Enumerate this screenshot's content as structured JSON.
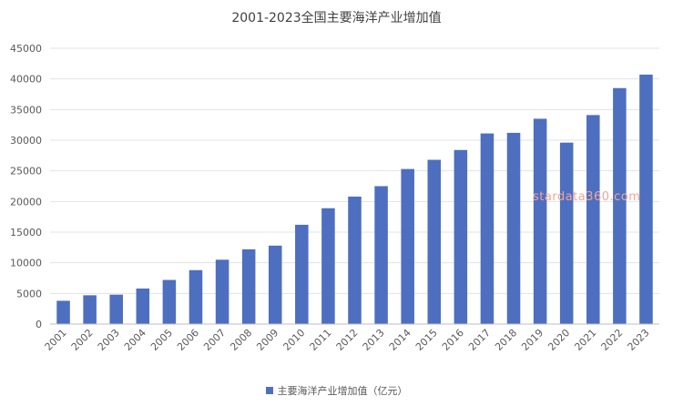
{
  "chart_data": {
    "type": "bar",
    "title": "2001-2023全国主要海洋产业增加值",
    "categories": [
      "2001",
      "2002",
      "2003",
      "2004",
      "2005",
      "2006",
      "2007",
      "2008",
      "2009",
      "2010",
      "2011",
      "2012",
      "2013",
      "2014",
      "2015",
      "2016",
      "2017",
      "2018",
      "2019",
      "2020",
      "2021",
      "2022",
      "2023"
    ],
    "series": [
      {
        "name": "主要海洋产业增加值（亿元）",
        "color": "#4e6fbf",
        "values": [
          3800,
          4700,
          4800,
          5800,
          7200,
          8800,
          10500,
          12200,
          12800,
          16200,
          18900,
          20800,
          22500,
          25300,
          26800,
          28400,
          31100,
          31200,
          33500,
          29600,
          34100,
          38500,
          40700
        ]
      }
    ],
    "ylim": [
      0,
      45000
    ],
    "yticks": [
      "0",
      "5000",
      "10000",
      "15000",
      "20000",
      "25000",
      "30000",
      "35000",
      "40000",
      "45000"
    ],
    "grid": true,
    "legend_position": "bottom",
    "watermark": "stardata360.com"
  }
}
